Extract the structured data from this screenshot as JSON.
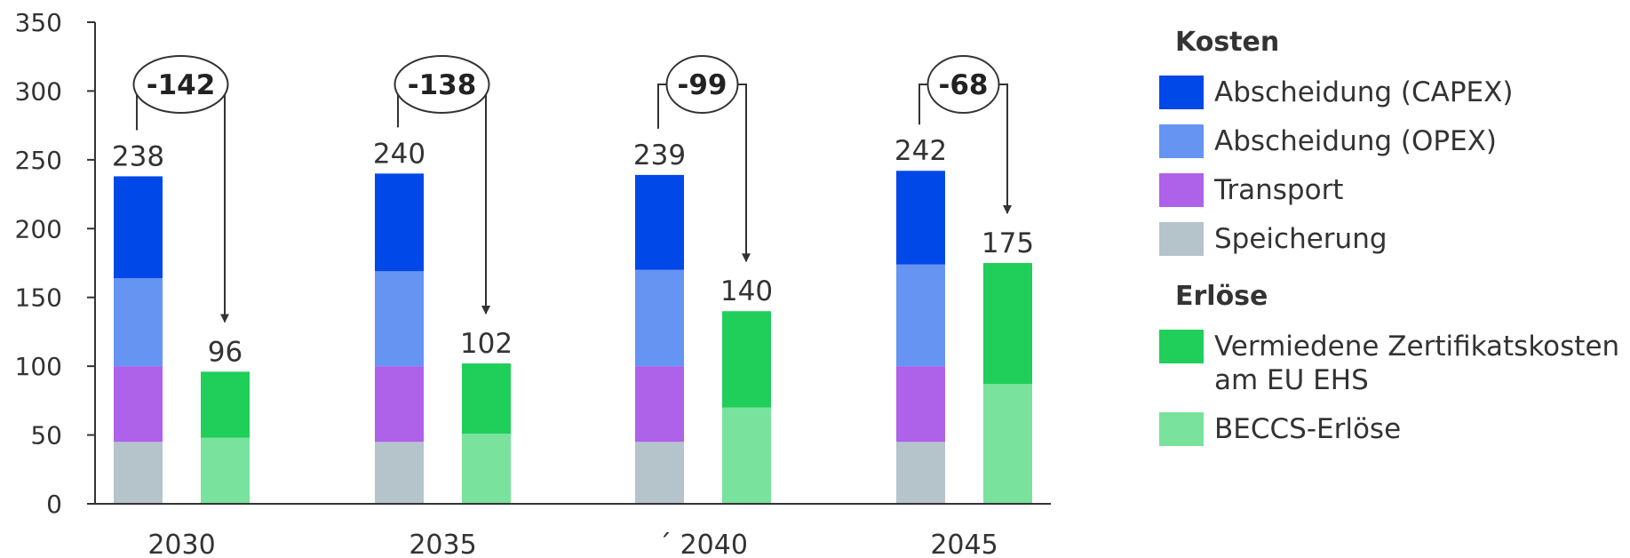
{
  "colors": {
    "capex": "#0048E8",
    "opex": "#6694F2",
    "transport": "#AE62EA",
    "speicherung": "#B5C3CB",
    "zertifikate": "#1FCF5A",
    "beccs": "#79E39D",
    "axis": "#333333",
    "annotation": "#333333"
  },
  "legend": {
    "costs_title": "Kosten",
    "costs": [
      {
        "name": "Abscheidung (CAPEX)",
        "color_key": "capex"
      },
      {
        "name": "Abscheidung (OPEX)",
        "color_key": "opex"
      },
      {
        "name": "Transport",
        "color_key": "transport"
      },
      {
        "name": "Speicherung",
        "color_key": "speicherung"
      }
    ],
    "revenues_title": "Erlöse",
    "revenues": [
      {
        "name": "Vermiedene Zertifikatskosten am EU EHS",
        "color_key": "zertifikate"
      },
      {
        "name": "BECCS-Erlöse",
        "color_key": "beccs"
      }
    ]
  },
  "chart_data": {
    "type": "bar",
    "stacked": true,
    "title": "",
    "xlabel": "",
    "ylabel": "",
    "ylim": [
      0,
      350
    ],
    "yticks": [
      0,
      50,
      100,
      150,
      200,
      250,
      300,
      350
    ],
    "grid": false,
    "legend_position": "right",
    "categories": [
      "2030",
      "2035",
      "´ 2040",
      "2045"
    ],
    "cost_series": [
      {
        "name": "Speicherung",
        "values": [
          45,
          45,
          45,
          45
        ]
      },
      {
        "name": "Transport",
        "values": [
          55,
          55,
          55,
          55
        ]
      },
      {
        "name": "Abscheidung (OPEX)",
        "values": [
          64,
          69,
          70,
          74
        ]
      },
      {
        "name": "Abscheidung (CAPEX)",
        "values": [
          74,
          71,
          69,
          68
        ]
      }
    ],
    "revenue_series": [
      {
        "name": "BECCS-Erlöse",
        "values": [
          48,
          51,
          70,
          87
        ]
      },
      {
        "name": "Vermiedene Zertifikatskosten am EU EHS",
        "values": [
          48,
          51,
          70,
          88
        ]
      }
    ],
    "cost_totals": [
      238,
      240,
      239,
      242
    ],
    "revenue_totals": [
      96,
      102,
      140,
      175
    ],
    "differences": [
      "-142",
      "-138",
      "-99",
      "-68"
    ]
  }
}
